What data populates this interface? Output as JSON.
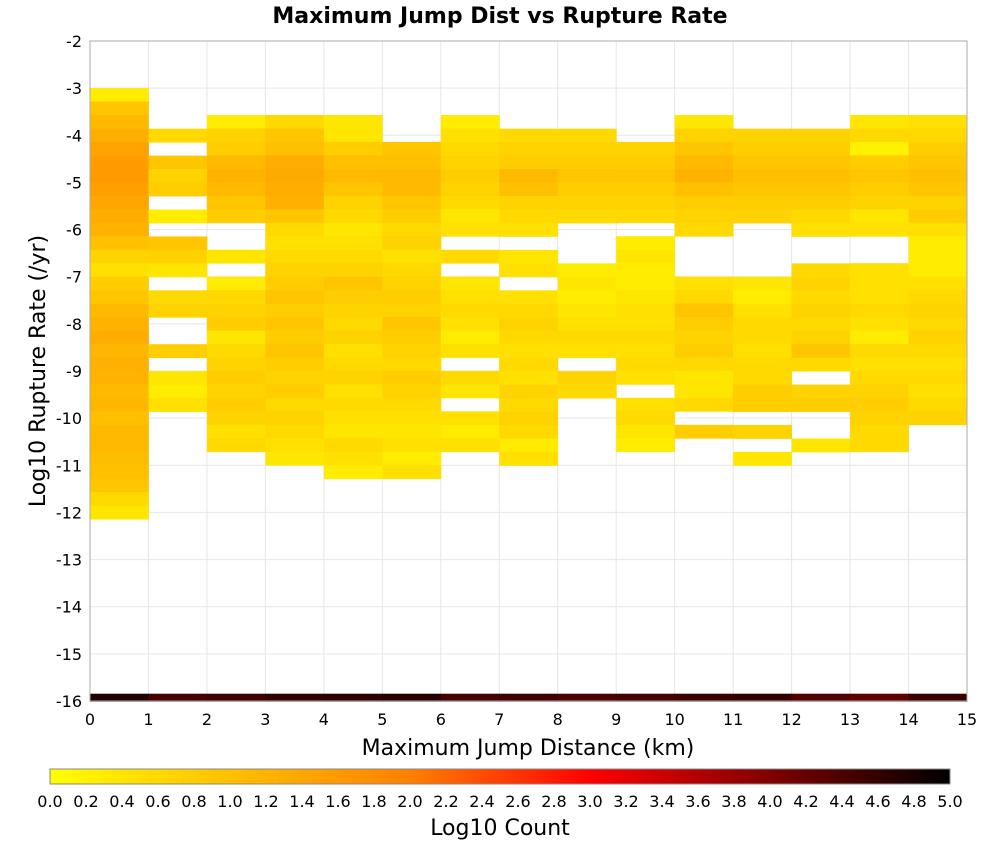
{
  "chart_data": {
    "type": "heatmap",
    "title": "Maximum Jump Dist vs Rupture Rate",
    "xlabel": "Maximum Jump Distance (km)",
    "ylabel": "Log10 Rupture Rate (/yr)",
    "xlim": [
      0,
      15
    ],
    "ylim": [
      -16,
      -2
    ],
    "x_ticks": [
      "0",
      "1",
      "2",
      "3",
      "4",
      "5",
      "6",
      "7",
      "8",
      "9",
      "10",
      "11",
      "12",
      "13",
      "14",
      "15"
    ],
    "y_ticks": [
      "-2",
      "-3",
      "-4",
      "-5",
      "-6",
      "-7",
      "-8",
      "-9",
      "-10",
      "-11",
      "-12",
      "-13",
      "-14",
      "-15",
      "-16"
    ],
    "grid": true,
    "bin_width_x": 1,
    "bin_height_y": 0.2857,
    "colorbar": {
      "label": "Log10 Count",
      "range": [
        0,
        5
      ],
      "ticks": [
        "0.0",
        "0.2",
        "0.4",
        "0.6",
        "0.8",
        "1.0",
        "1.2",
        "1.4",
        "1.6",
        "1.8",
        "2.0",
        "2.2",
        "2.4",
        "2.6",
        "2.8",
        "3.0",
        "3.2",
        "3.4",
        "3.6",
        "3.8",
        "4.0",
        "4.2",
        "4.4",
        "4.6",
        "4.8",
        "5.0"
      ],
      "stops": [
        "#ffff00",
        "#ffc000",
        "#ff8000",
        "#ff0000",
        "#800000",
        "#000000"
      ]
    },
    "bottom_row": {
      "y": -15.93,
      "values": [
        4.75,
        4.45,
        4.5,
        4.6,
        4.65,
        4.7,
        4.45,
        4.5,
        4.4,
        4.45,
        4.55,
        4.6,
        4.35,
        4.25,
        4.55
      ]
    },
    "columns": [
      {
        "x": 0.5,
        "top": -3.0,
        "values": [
          0.3,
          0.9,
          1.1,
          1.3,
          1.45,
          1.55,
          1.6,
          1.5,
          1.4,
          1.3,
          1.2,
          1.0,
          0.7,
          0.5,
          0.8,
          0.9,
          1.1,
          1.2,
          1.3,
          1.15,
          1.25,
          1.2,
          1.1,
          1.15,
          1.0,
          1.1,
          1.1,
          1.05,
          1.0,
          0.9,
          0.6,
          0.4
        ]
      },
      {
        "x": 1.5,
        "top": -3.86,
        "values": [
          0.6,
          null,
          0.9,
          0.7,
          0.8,
          null,
          0.3,
          null,
          0.9,
          0.7,
          0.4,
          null,
          0.6,
          0.7,
          null,
          null,
          0.8,
          null,
          0.4,
          0.3,
          0.5,
          null,
          null
        ]
      },
      {
        "x": 2.5,
        "top": -3.57,
        "values": [
          0.3,
          0.7,
          0.8,
          1.1,
          1.2,
          1.1,
          0.9,
          0.8,
          null,
          null,
          0.4,
          null,
          0.3,
          0.6,
          0.7,
          0.8,
          0.4,
          0.6,
          0.7,
          0.8,
          0.7,
          0.8,
          0.7,
          0.5,
          0.6
        ]
      },
      {
        "x": 3.5,
        "top": -3.57,
        "values": [
          0.6,
          0.9,
          1.0,
          1.3,
          1.35,
          1.3,
          1.25,
          0.9,
          0.6,
          0.5,
          0.6,
          0.7,
          0.8,
          0.9,
          0.8,
          0.9,
          0.8,
          0.9,
          0.8,
          0.7,
          0.8,
          0.6,
          0.7,
          0.6,
          0.5,
          0.4
        ]
      },
      {
        "x": 4.5,
        "top": -3.57,
        "values": [
          0.4,
          0.4,
          0.8,
          1.0,
          1.1,
          0.9,
          0.7,
          0.6,
          0.4,
          0.5,
          0.6,
          0.7,
          0.9,
          0.8,
          0.7,
          0.6,
          0.7,
          0.5,
          0.6,
          0.7,
          0.5,
          0.6,
          0.5,
          0.4,
          0.6,
          0.5,
          0.3
        ]
      },
      {
        "x": 5.5,
        "top": -4.14,
        "values": [
          0.9,
          1.0,
          1.1,
          1.1,
          0.9,
          0.8,
          0.6,
          0.7,
          0.5,
          0.6,
          0.7,
          0.8,
          0.7,
          0.9,
          0.8,
          0.7,
          0.6,
          0.8,
          0.7,
          0.6,
          0.5,
          0.4,
          0.5,
          0.3,
          0.5
        ]
      },
      {
        "x": 6.5,
        "top": -3.57,
        "values": [
          0.3,
          0.5,
          0.6,
          0.7,
          0.8,
          0.7,
          0.6,
          0.4,
          0.5,
          null,
          0.6,
          null,
          0.4,
          0.5,
          0.6,
          0.5,
          0.3,
          0.5,
          null,
          0.6,
          0.4,
          null,
          0.5,
          0.3,
          0.5
        ]
      },
      {
        "x": 7.5,
        "top": -3.86,
        "values": [
          0.6,
          0.7,
          0.8,
          1.1,
          1.0,
          0.7,
          0.6,
          0.5,
          null,
          0.4,
          0.5,
          null,
          0.5,
          0.6,
          0.7,
          0.6,
          0.5,
          0.6,
          0.5,
          0.7,
          0.6,
          0.7,
          0.6,
          0.3,
          0.5
        ]
      },
      {
        "x": 8.5,
        "top": -3.86,
        "values": [
          0.6,
          0.7,
          0.8,
          0.9,
          0.8,
          0.7,
          0.6,
          null,
          null,
          null,
          0.3,
          0.4,
          0.3,
          0.4,
          0.5,
          0.6,
          0.5,
          null,
          0.7,
          0.6
        ]
      },
      {
        "x": 9.5,
        "top": -4.14,
        "values": [
          0.7,
          0.8,
          0.9,
          0.8,
          0.7,
          0.6,
          null,
          0.3,
          0.4,
          0.3,
          0.3,
          0.4,
          0.5,
          0.5,
          0.6,
          0.5,
          0.6,
          0.5,
          null,
          0.5,
          0.6,
          0.4,
          0.3
        ]
      },
      {
        "x": 10.5,
        "top": -3.57,
        "values": [
          0.4,
          0.7,
          0.9,
          1.1,
          1.2,
          1.0,
          0.8,
          0.7,
          0.6,
          null,
          null,
          null,
          0.5,
          0.6,
          0.9,
          0.8,
          0.7,
          0.8,
          0.6,
          0.4,
          0.4,
          0.6,
          null,
          0.8
        ]
      },
      {
        "x": 11.5,
        "top": -3.86,
        "values": [
          0.7,
          0.8,
          0.9,
          1.0,
          0.9,
          0.8,
          0.7,
          null,
          null,
          null,
          null,
          0.4,
          0.3,
          0.5,
          0.6,
          0.6,
          0.5,
          0.6,
          0.6,
          0.8,
          0.8,
          null,
          0.7,
          null,
          0.4
        ]
      },
      {
        "x": 12.5,
        "top": -3.86,
        "values": [
          0.7,
          0.8,
          0.9,
          1.0,
          0.9,
          0.8,
          0.6,
          0.5,
          null,
          null,
          0.6,
          0.7,
          0.6,
          0.7,
          0.6,
          0.7,
          0.9,
          0.6,
          null,
          0.7,
          0.8,
          null,
          null,
          0.4
        ]
      },
      {
        "x": 13.5,
        "top": -3.57,
        "values": [
          0.4,
          0.6,
          0.2,
          0.8,
          0.9,
          0.8,
          0.7,
          0.4,
          0.5,
          null,
          null,
          0.5,
          0.5,
          0.5,
          0.6,
          0.5,
          0.3,
          0.6,
          0.5,
          0.6,
          0.7,
          0.8,
          0.7,
          0.6,
          0.6
        ]
      },
      {
        "x": 14.5,
        "top": -3.57,
        "values": [
          0.5,
          0.6,
          0.8,
          0.9,
          1.0,
          0.9,
          0.7,
          0.8,
          0.5,
          0.3,
          0.3,
          0.3,
          0.5,
          0.6,
          0.7,
          0.6,
          0.7,
          0.6,
          0.5,
          0.6,
          0.5,
          0.6,
          0.7
        ]
      }
    ]
  }
}
